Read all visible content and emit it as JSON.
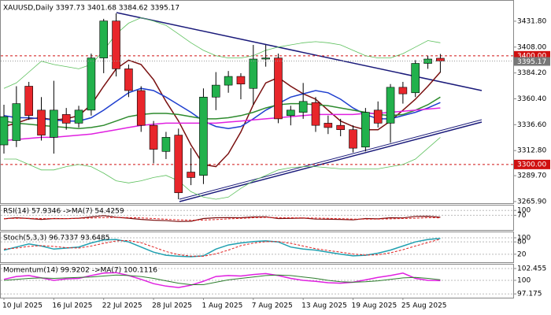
{
  "chart_data": [
    {
      "type": "candlestick",
      "title": "XAUUSD,Daily  3397.73 3401.68 3384.62 3395.17",
      "categories": [
        "10 Jul 2025",
        null,
        null,
        null,
        "16 Jul 2025",
        null,
        null,
        null,
        "22 Jul 2025",
        null,
        null,
        null,
        "28 Jul 2025",
        null,
        null,
        null,
        "1 Aug 2025",
        null,
        null,
        null,
        "7 Aug 2025",
        null,
        null,
        null,
        "13 Aug 2025",
        null,
        null,
        null,
        "19 Aug 2025",
        null,
        null,
        null,
        "25 Aug 2025",
        null,
        null,
        null
      ],
      "open": [
        3318,
        3322,
        3372,
        3350,
        3325,
        3346,
        3338,
        3350,
        3398,
        3432,
        3388,
        3368,
        3336,
        3312,
        3327,
        3293,
        3290,
        3362,
        3373,
        3381,
        3370,
        3397,
        3398,
        3345,
        3348,
        3357,
        3338,
        3336,
        3332,
        3316,
        3350,
        3338,
        3371,
        3366,
        3393,
        3397.73
      ],
      "high": [
        3355,
        3372,
        3376,
        3362,
        3377,
        3352,
        3354,
        3402,
        3434,
        3439,
        3392,
        3372,
        3340,
        3330,
        3333,
        3315,
        3370,
        3385,
        3386,
        3384,
        3410,
        3410,
        3402,
        3354,
        3375,
        3362,
        3345,
        3342,
        3336,
        3352,
        3358,
        3374,
        3376,
        3396,
        3400,
        3401.68
      ],
      "low": [
        3310,
        3316,
        3341,
        3322,
        3310,
        3332,
        3334,
        3345,
        3384,
        3381,
        3362,
        3330,
        3301,
        3305,
        3268,
        3281,
        3282,
        3350,
        3366,
        3360,
        3355,
        3390,
        3338,
        3336,
        3342,
        3330,
        3328,
        3326,
        3311,
        3312,
        3334,
        3320,
        3356,
        3362,
        3388,
        3384.62
      ],
      "close": [
        3344,
        3356,
        3345,
        3327,
        3350,
        3338,
        3350,
        3398,
        3432,
        3388,
        3368,
        3336,
        3314,
        3325,
        3274,
        3288,
        3362,
        3373,
        3381,
        3374,
        3397,
        3398,
        3342,
        3350,
        3358,
        3336,
        3334,
        3332,
        3315,
        3348,
        3338,
        3371,
        3365,
        3393,
        3397,
        3395.17
      ],
      "up_color": "#22b14c",
      "down_color": "#e8262b",
      "series": [
        {
          "color": "#7a1010",
          "width": 1.5,
          "values": [
            3335,
            3338,
            3342,
            3343,
            3341,
            3342,
            3345,
            3355,
            3372,
            3388,
            3396,
            3392,
            3378,
            3358,
            3340,
            3318,
            3300,
            3298,
            3310,
            3330,
            3355,
            3375,
            3380,
            3372,
            3365,
            3360,
            3350,
            3340,
            3335,
            3332,
            3332,
            3340,
            3350,
            3360,
            3372,
            3385
          ]
        },
        {
          "color": "#1f3fcf",
          "width": 1.5,
          "values": [
            3345,
            3343,
            3343,
            3342,
            3341,
            3340,
            3340,
            3343,
            3350,
            3358,
            3366,
            3370,
            3368,
            3362,
            3355,
            3348,
            3340,
            3335,
            3333,
            3335,
            3342,
            3350,
            3356,
            3362,
            3365,
            3368,
            3366,
            3360,
            3352,
            3346,
            3342,
            3342,
            3345,
            3348,
            3352,
            3357
          ]
        },
        {
          "color": "#2e8b2e",
          "width": 1.5,
          "values": [
            3340,
            3338,
            3337,
            3336,
            3335,
            3334,
            3333,
            3334,
            3336,
            3340,
            3344,
            3346,
            3347,
            3347,
            3346,
            3344,
            3342,
            3342,
            3343,
            3345,
            3348,
            3352,
            3355,
            3356,
            3356,
            3355,
            3354,
            3352,
            3350,
            3348,
            3346,
            3345,
            3346,
            3350,
            3355,
            3362
          ]
        },
        {
          "color": "#e020e0",
          "width": 1.5,
          "values": [
            3322,
            3323,
            3324,
            3325,
            3325,
            3326,
            3327,
            3328,
            3330,
            3332,
            3334,
            3336,
            3337,
            3338,
            3338,
            3338,
            3338,
            3338,
            3339,
            3340,
            3341,
            3342,
            3343,
            3344,
            3345,
            3346,
            3346,
            3346,
            3346,
            3347,
            3347,
            3348,
            3349,
            3350,
            3351,
            3352
          ]
        },
        {
          "color": "#5cc05c",
          "width": 0.8,
          "values": [
            3370,
            3375,
            3385,
            3395,
            3392,
            3390,
            3388,
            3392,
            3405,
            3420,
            3430,
            3435,
            3432,
            3428,
            3420,
            3412,
            3405,
            3400,
            3398,
            3398,
            3400,
            3405,
            3408,
            3410,
            3412,
            3413,
            3412,
            3410,
            3405,
            3400,
            3398,
            3398,
            3402,
            3408,
            3414,
            3412
          ]
        },
        {
          "color": "#5cc05c",
          "width": 0.8,
          "values": [
            3305,
            3305,
            3300,
            3295,
            3295,
            3298,
            3300,
            3298,
            3292,
            3285,
            3283,
            3285,
            3288,
            3290,
            3285,
            3275,
            3270,
            3268,
            3270,
            3278,
            3285,
            3290,
            3295,
            3297,
            3298,
            3298,
            3297,
            3296,
            3296,
            3296,
            3296,
            3298,
            3300,
            3305,
            3315,
            3325
          ]
        }
      ],
      "hlines": [
        {
          "value": 3400,
          "label": "3400.00"
        },
        {
          "value": 3300,
          "label": "3300.00"
        }
      ],
      "hline_color": "#d01010",
      "ylim": [
        3264.4,
        3450.6
      ],
      "yticks": [
        {
          "value": 3431.8,
          "label": "3431.80"
        },
        {
          "value": 3408,
          "label": "3408.00"
        },
        {
          "value": 3384.2,
          "label": "3384.20"
        },
        {
          "value": 3360.4,
          "label": "3360.40"
        },
        {
          "value": 3336.6,
          "label": "3336.60"
        },
        {
          "value": 3312.8,
          "label": "3312.80"
        },
        {
          "value": 3289.7,
          "label": "3289.70"
        },
        {
          "value": 3265.9,
          "label": "3265.90"
        }
      ]
    },
    {
      "type": "line",
      "title": "RSI(14) 57.9346 ->MA(7) 54.4259",
      "series": [
        {
          "color": "#7a1010",
          "width": 1.2,
          "values": [
            48,
            55,
            50,
            45,
            50,
            49,
            52,
            60,
            68,
            58,
            52,
            45,
            40,
            37,
            32,
            33,
            50,
            55,
            56,
            55,
            60,
            61,
            50,
            51,
            53,
            47,
            46,
            45,
            42,
            50,
            48,
            55,
            54,
            63,
            64,
            57.9346
          ]
        },
        {
          "color": "#e02020",
          "width": 1,
          "dash": true,
          "values": [
            50,
            51,
            51,
            50,
            50,
            50,
            51,
            53,
            56,
            57,
            56,
            54,
            50,
            46,
            42,
            40,
            41,
            44,
            48,
            51,
            55,
            57,
            56,
            55,
            54,
            53,
            51,
            49,
            47,
            47,
            47,
            48,
            50,
            52,
            55,
            54.4259
          ]
        }
      ],
      "ylim": [
        -20,
        130
      ],
      "yticks": [
        100,
        70
      ]
    },
    {
      "type": "line",
      "title": "Stoch(5,3,3) 96.7337 93.6485",
      "series": [
        {
          "color": "#20a0b0",
          "width": 1.5,
          "values": [
            40,
            55,
            70,
            60,
            45,
            50,
            55,
            75,
            90,
            92,
            80,
            55,
            30,
            15,
            10,
            8,
            12,
            45,
            65,
            75,
            82,
            85,
            80,
            55,
            45,
            40,
            30,
            20,
            12,
            15,
            25,
            40,
            60,
            80,
            92,
            96.7337
          ]
        },
        {
          "color": "#e02020",
          "width": 1,
          "dash": true,
          "values": [
            45,
            50,
            58,
            62,
            58,
            52,
            50,
            60,
            73,
            85,
            87,
            76,
            55,
            33,
            18,
            11,
            10,
            22,
            40,
            62,
            74,
            81,
            82,
            73,
            60,
            47,
            38,
            30,
            21,
            16,
            17,
            27,
            42,
            60,
            77,
            93.6485
          ]
        }
      ],
      "ylim": [
        -19,
        126.7
      ],
      "yticks": [
        100,
        80,
        20
      ]
    },
    {
      "type": "line",
      "title": "Momentum(14) 99.9202 ->MA(7) 100.1116",
      "series": [
        {
          "color": "#e020e0",
          "width": 1.5,
          "values": [
            100.2,
            100.8,
            101.0,
            100.5,
            100.0,
            100.3,
            100.4,
            101.0,
            101.5,
            101.6,
            101.0,
            100.2,
            99.3,
            98.8,
            98.5,
            99.0,
            99.8,
            100.8,
            101.0,
            100.9,
            101.2,
            101.4,
            101.0,
            100.4,
            100.0,
            99.8,
            99.5,
            99.4,
            99.6,
            100.1,
            100.6,
            101.0,
            101.5,
            100.4,
            100.0,
            99.9202
          ]
        },
        {
          "color": "#2e7d2e",
          "width": 1,
          "values": [
            100.0,
            100.2,
            100.4,
            100.5,
            100.4,
            100.5,
            100.6,
            100.7,
            100.9,
            101.1,
            101.0,
            100.8,
            100.4,
            99.9,
            99.4,
            99.1,
            99.1,
            99.6,
            100.1,
            100.4,
            100.7,
            101.0,
            101.1,
            101.0,
            100.7,
            100.4,
            100.0,
            99.7,
            99.6,
            99.7,
            99.9,
            100.2,
            100.5,
            100.6,
            100.4,
            100.1116
          ]
        }
      ],
      "ylim": [
        96.39,
        103.27
      ],
      "yticks": [
        {
          "value": 102.455,
          "label": "102.455"
        },
        100,
        {
          "value": 97.175,
          "label": "97.175"
        }
      ]
    }
  ]
}
